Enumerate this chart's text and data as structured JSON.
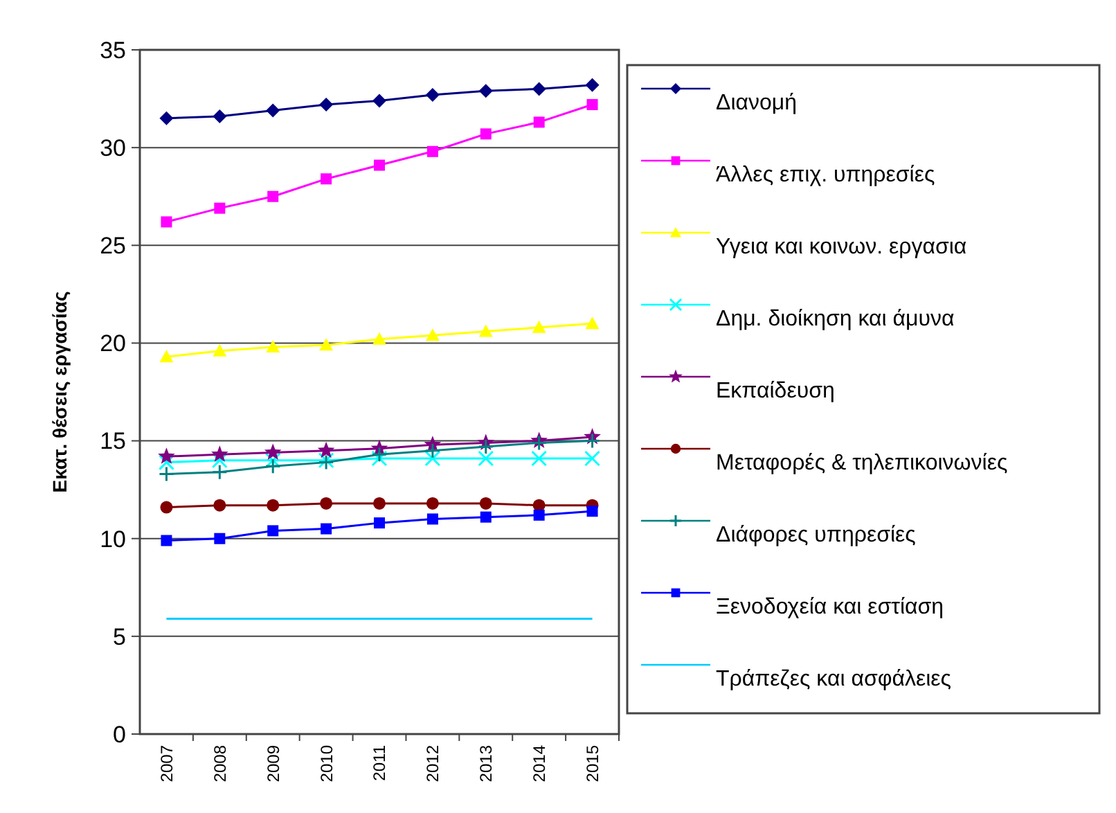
{
  "chart_data": {
    "type": "line",
    "ylabel": "Εκατ. θέσεις εργασίας",
    "categories": [
      "2007",
      "2008",
      "2009",
      "2010",
      "2011",
      "2012",
      "2013",
      "2014",
      "2015"
    ],
    "ylim": [
      0,
      35
    ],
    "yticks": [
      0,
      5,
      10,
      15,
      20,
      25,
      30,
      35
    ],
    "grid": "y",
    "legend": "right",
    "series": [
      {
        "name": "Διανομή",
        "color": "#000080",
        "marker": "diamond",
        "values": [
          31.5,
          31.6,
          31.9,
          32.2,
          32.4,
          32.7,
          32.9,
          33.0,
          33.2
        ]
      },
      {
        "name": "Άλλες επιχ. υπηρεσίες",
        "color": "#ff00ff",
        "marker": "square",
        "values": [
          26.2,
          26.9,
          27.5,
          28.4,
          29.1,
          29.8,
          30.7,
          31.3,
          32.2
        ]
      },
      {
        "name": "Υγεια και κοινων. εργασια",
        "color": "#ffff00",
        "marker": "triangle",
        "values": [
          19.3,
          19.6,
          19.8,
          19.9,
          20.2,
          20.4,
          20.6,
          20.8,
          21.0
        ]
      },
      {
        "name": "Δημ. διοίκηση και άμυνα",
        "color": "#00ffff",
        "marker": "cross",
        "values": [
          13.9,
          14.0,
          14.0,
          14.0,
          14.1,
          14.1,
          14.1,
          14.1,
          14.1
        ]
      },
      {
        "name": "Εκπαίδευση",
        "color": "#800080",
        "marker": "star",
        "values": [
          14.2,
          14.3,
          14.4,
          14.5,
          14.6,
          14.8,
          14.9,
          15.0,
          15.2
        ]
      },
      {
        "name": "Μεταφορές & τηλεπικοινωνίες",
        "color": "#800000",
        "marker": "circle",
        "values": [
          11.6,
          11.7,
          11.7,
          11.8,
          11.8,
          11.8,
          11.8,
          11.7,
          11.7
        ]
      },
      {
        "name": "Διάφορες υπηρεσίες",
        "color": "#008080",
        "marker": "plus",
        "values": [
          13.3,
          13.4,
          13.7,
          13.9,
          14.3,
          14.5,
          14.7,
          14.9,
          15.0
        ]
      },
      {
        "name": "Ξενοδοχεία και εστίαση",
        "color": "#0000ff",
        "marker": "square",
        "values": [
          9.9,
          10.0,
          10.4,
          10.5,
          10.8,
          11.0,
          11.1,
          11.2,
          11.4
        ]
      },
      {
        "name": "Τράπεζες και ασφάλειες",
        "color": "#00ccff",
        "marker": "none",
        "values": [
          5.9,
          5.9,
          5.9,
          5.9,
          5.9,
          5.9,
          5.9,
          5.9,
          5.9
        ]
      }
    ]
  }
}
